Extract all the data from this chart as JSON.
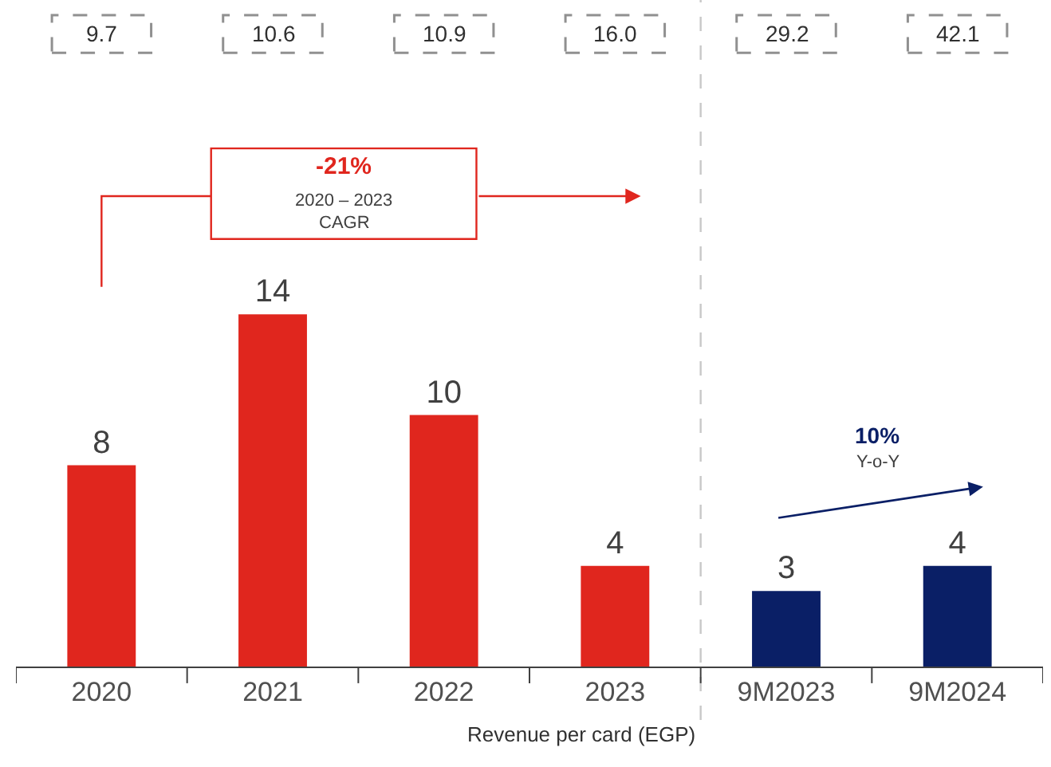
{
  "chart_data": {
    "type": "bar",
    "categories": [
      "2020",
      "2021",
      "2022",
      "2023",
      "9M2023",
      "9M2024"
    ],
    "values": [
      8,
      14,
      10,
      4,
      3,
      4
    ],
    "colors": [
      "#e0261e",
      "#e0261e",
      "#e0261e",
      "#e0261e",
      "#0a1f66",
      "#0a1f66"
    ],
    "data_labels": true,
    "legend": false,
    "tick_labels": "x",
    "annotations": [
      "9.7",
      "10.6",
      "10.9",
      "16.0",
      "29.2",
      "42.1",
      "Revenue per card (EGP)",
      "-21%",
      "2020 – 2023",
      "CAGR",
      "10%",
      "Y-o-Y"
    ]
  }
}
